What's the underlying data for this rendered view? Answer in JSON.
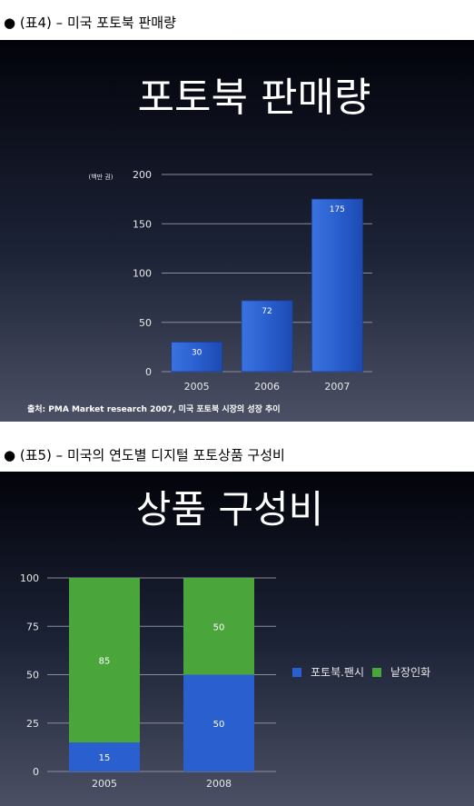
{
  "captions": {
    "table4": "● (표4) – 미국 포토북 판매량",
    "table5": "● (표5) – 미국의 연도별 디지털 포토상품 구성비"
  },
  "chart_data": [
    {
      "type": "bar",
      "title": "포토북 판매량",
      "unit_label": "(백만 권)",
      "categories": [
        "2005",
        "2006",
        "2007"
      ],
      "values": [
        30,
        72,
        175
      ],
      "ylim": [
        0,
        200
      ],
      "yticks": [
        0,
        50,
        100,
        150,
        200
      ],
      "grid": true,
      "bar_color": "#2a5fcf",
      "source": "출처: PMA Market research 2007, 미국 포토북 시장의 성장 추이"
    },
    {
      "type": "bar",
      "stacked": true,
      "title": "상품 구성비",
      "categories": [
        "2005",
        "2008"
      ],
      "series": [
        {
          "name": "포토북.팬시",
          "values": [
            15,
            50
          ],
          "color": "#2a5fcf"
        },
        {
          "name": "낱장인화",
          "values": [
            85,
            50
          ],
          "color": "#4aa63a"
        }
      ],
      "ylim": [
        0,
        100
      ],
      "yticks": [
        0,
        25,
        50,
        75,
        100
      ],
      "grid": true,
      "legend": "right"
    }
  ]
}
